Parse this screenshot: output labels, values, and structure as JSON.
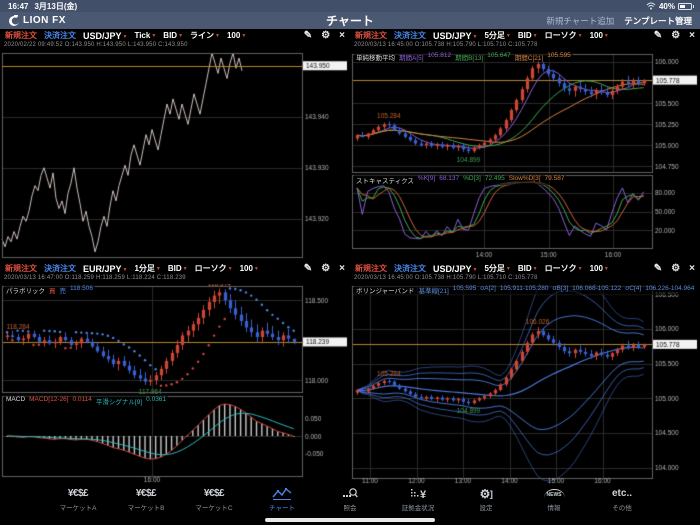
{
  "status_bar": {
    "time": "16:47",
    "date": "3月13日(金)",
    "battery_percent": "40%"
  },
  "title_bar": {
    "logo": "LION FX",
    "title": "チャート",
    "add_chart": "新規チャート追加",
    "template_manage": "テンプレート管理"
  },
  "toolbar": {
    "currencies_glyph": "¥€$£",
    "etc_glyph": "etc..",
    "news_glyph": "NEWS",
    "items": [
      {
        "label": "マーケットA",
        "icon": "currencies",
        "active": false
      },
      {
        "label": "マーケットB",
        "icon": "currencies",
        "active": false
      },
      {
        "label": "マーケットC",
        "icon": "currencies",
        "active": false
      },
      {
        "label": "チャート",
        "icon": "chart",
        "active": true
      },
      {
        "label": "照会",
        "icon": "search",
        "active": false
      },
      {
        "label": "証拠金状況",
        "icon": "margin",
        "active": false
      },
      {
        "label": "設定",
        "icon": "settings",
        "active": false
      },
      {
        "label": "情報",
        "icon": "news",
        "active": false
      },
      {
        "label": "その他",
        "icon": "etc",
        "active": false
      }
    ]
  },
  "colors": {
    "up": "#cc4636",
    "down": "#3a5fd0",
    "grid": "#2a2a2a",
    "frame": "#616161",
    "axis_text": "#b0b0b0",
    "cur_line": "#b5862b",
    "tick_line": "#cfc0bd",
    "sma_a": "#8a5fd8",
    "sma_b": "#3faa4f",
    "sma_c": "#d8833c",
    "stoch_k": "#8a5fd8",
    "stoch_d": "#3faa4f",
    "stoch_sd": "#c8643c",
    "macd": "#c8443c",
    "signal": "#2fb8b8",
    "hist": "#c8c8c8",
    "bb": "#4a78d8",
    "sar_up": "#cf4a3c",
    "sar_dn": "#4a86e8",
    "ann_hi": "#c2622f",
    "ann_lo": "#3da050"
  },
  "panels": [
    {
      "kind": "tick",
      "header": {
        "new_order": "新規注文",
        "close_order": "決済注文",
        "pair": "USD/JPY",
        "timeframe": "Tick",
        "price_side": "BID",
        "chart_type": "ライン",
        "bar_count": "100"
      },
      "info": "2020/02/22 09:49:52   O:143.950   H:143.950   L:143.950   C:143.950",
      "current": {
        "p": 143.95,
        "t": "143.950"
      },
      "y_ticks": [
        {
          "p": 143.95,
          "t": "143.950"
        },
        {
          "p": 143.94,
          "t": "143.940"
        },
        {
          "p": 143.93,
          "t": "143.930"
        },
        {
          "p": 143.92,
          "t": "143.920"
        }
      ],
      "x_labels": [],
      "ticks": [
        143.916,
        143.9145,
        143.9165,
        143.9155,
        143.9175,
        143.916,
        143.9185,
        143.9205,
        143.9195,
        143.9215,
        143.9245,
        143.9265,
        143.9255,
        143.9285,
        143.93,
        143.928,
        143.926,
        143.929,
        143.924,
        143.922,
        143.9235,
        143.921,
        143.925,
        143.927,
        143.93,
        143.926,
        143.923,
        143.9195,
        143.9215,
        143.9185,
        143.9165,
        143.9135,
        143.9155,
        143.9185,
        143.9205,
        143.9185,
        143.9225,
        143.9255,
        143.9235,
        143.9265,
        143.9285,
        143.9305,
        143.9285,
        143.9325,
        143.9345,
        143.9325,
        143.9305,
        143.9335,
        143.9365,
        143.9345,
        143.9375,
        143.9355,
        143.9335,
        143.9365,
        143.9395,
        143.9425,
        143.9405,
        143.9435,
        143.9415,
        143.9395,
        143.9425,
        143.9405,
        143.9385,
        143.9415,
        143.9445,
        143.9425,
        143.9405,
        143.9435,
        143.9465,
        143.9495,
        143.9525,
        143.9505,
        143.9485,
        143.9515,
        143.9495,
        143.9475,
        143.9505,
        143.9525,
        143.9495,
        143.9515,
        143.949
      ]
    },
    {
      "kind": "sma_stoch",
      "header": {
        "new_order": "新規注文",
        "close_order": "決済注文",
        "pair": "USD/JPY",
        "timeframe": "5分足",
        "price_side": "BID",
        "chart_type": "ローソク",
        "bar_count": "100"
      },
      "info": "2020/03/13 16:45:00   O:105.738   H:105.790   L:105.710   C:105.778",
      "ind_sma": {
        "name": "単純移動平均",
        "a_label": "期間A[5]",
        "a_value": "105.812",
        "b_label": "期間B[13]",
        "b_value": "105.647",
        "c_label": "期間C[21]",
        "c_value": "105.595"
      },
      "ind_stoch": {
        "name": "ストキャスティクス",
        "k_label": "%K[9]",
        "k_value": "68.137",
        "d_label": "%D[3]",
        "d_value": "72.495",
        "sd_label": "Slow%D[3]",
        "sd_value": "79.587"
      },
      "current": {
        "p": 105.778,
        "t": "105.778"
      },
      "y_ticks": [
        {
          "p": 106.0,
          "t": "106.000"
        },
        {
          "p": 105.5,
          "t": "105.500"
        },
        {
          "p": 105.25,
          "t": "105.250"
        },
        {
          "p": 105.0,
          "t": "105.000"
        },
        {
          "p": 104.75,
          "t": "104.750"
        }
      ],
      "sub_ticks": [
        {
          "v": 80,
          "t": "80.000"
        },
        {
          "v": 50,
          "t": "50.000"
        },
        {
          "v": 20,
          "t": "20.000"
        }
      ],
      "x_labels": [
        {
          "f": 0.44,
          "t": "14:00"
        },
        {
          "f": 0.655,
          "t": "15:00"
        },
        {
          "f": 0.87,
          "t": "16:00"
        }
      ],
      "annotations": [
        {
          "t": "105.284",
          "i": 6,
          "above": true,
          "hi": true
        },
        {
          "t": "104.899",
          "i": 21,
          "above": false,
          "hi": false
        }
      ],
      "candles": [
        [
          105.08,
          105.13,
          105.05,
          105.12
        ],
        [
          105.12,
          105.16,
          105.09,
          105.1
        ],
        [
          105.1,
          105.15,
          105.07,
          105.14
        ],
        [
          105.14,
          105.2,
          105.12,
          105.18
        ],
        [
          105.18,
          105.24,
          105.15,
          105.22
        ],
        [
          105.22,
          105.27,
          105.19,
          105.25
        ],
        [
          105.25,
          105.284,
          105.21,
          105.24
        ],
        [
          105.24,
          105.26,
          105.17,
          105.18
        ],
        [
          105.18,
          105.21,
          105.12,
          105.14
        ],
        [
          105.14,
          105.17,
          105.08,
          105.1
        ],
        [
          105.1,
          105.13,
          105.04,
          105.06
        ],
        [
          105.06,
          105.09,
          105.0,
          105.02
        ],
        [
          105.02,
          105.06,
          104.98,
          105.0
        ],
        [
          105.0,
          105.04,
          104.96,
          105.02
        ],
        [
          105.02,
          105.05,
          104.97,
          104.99
        ],
        [
          104.99,
          105.03,
          104.95,
          105.01
        ],
        [
          105.01,
          105.04,
          104.96,
          104.98
        ],
        [
          104.98,
          105.02,
          104.94,
          105.0
        ],
        [
          105.0,
          105.03,
          104.95,
          104.97
        ],
        [
          104.97,
          105.01,
          104.93,
          104.99
        ],
        [
          104.99,
          105.02,
          104.92,
          104.95
        ],
        [
          104.95,
          104.99,
          104.899,
          104.93
        ],
        [
          104.93,
          104.99,
          104.91,
          104.97
        ],
        [
          104.97,
          105.02,
          104.95,
          105.0
        ],
        [
          105.0,
          105.05,
          104.97,
          105.03
        ],
        [
          105.03,
          105.09,
          105.0,
          105.07
        ],
        [
          105.07,
          105.14,
          105.04,
          105.12
        ],
        [
          105.12,
          105.22,
          105.1,
          105.2
        ],
        [
          105.2,
          105.32,
          105.17,
          105.3
        ],
        [
          105.3,
          105.44,
          105.27,
          105.42
        ],
        [
          105.42,
          105.56,
          105.39,
          105.54
        ],
        [
          105.54,
          105.7,
          105.51,
          105.67
        ],
        [
          105.67,
          105.83,
          105.63,
          105.8
        ],
        [
          105.8,
          105.95,
          105.76,
          105.92
        ],
        [
          105.92,
          106.026,
          105.86,
          105.97
        ],
        [
          105.97,
          106.0,
          105.88,
          105.91
        ],
        [
          105.91,
          105.95,
          105.82,
          105.85
        ],
        [
          105.85,
          105.9,
          105.76,
          105.8
        ],
        [
          105.8,
          105.84,
          105.7,
          105.74
        ],
        [
          105.74,
          105.79,
          105.64,
          105.68
        ],
        [
          105.68,
          105.74,
          105.6,
          105.65
        ],
        [
          105.65,
          105.72,
          105.58,
          105.7
        ],
        [
          105.7,
          105.76,
          105.63,
          105.67
        ],
        [
          105.67,
          105.73,
          105.6,
          105.64
        ],
        [
          105.64,
          105.7,
          105.57,
          105.61
        ],
        [
          105.61,
          105.68,
          105.55,
          105.66
        ],
        [
          105.66,
          105.72,
          105.6,
          105.63
        ],
        [
          105.63,
          105.69,
          105.57,
          105.6
        ],
        [
          105.6,
          105.67,
          105.55,
          105.65
        ],
        [
          105.65,
          105.73,
          105.61,
          105.7
        ],
        [
          105.7,
          105.79,
          105.66,
          105.76
        ],
        [
          105.76,
          105.83,
          105.7,
          105.73
        ],
        [
          105.73,
          105.8,
          105.68,
          105.77
        ],
        [
          105.77,
          105.82,
          105.71,
          105.74
        ],
        [
          105.738,
          105.79,
          105.71,
          105.778
        ]
      ]
    },
    {
      "kind": "sar_macd",
      "header": {
        "new_order": "新規注文",
        "close_order": "決済注文",
        "pair": "EUR/JPY",
        "timeframe": "1分足",
        "price_side": "BID",
        "chart_type": "ローソク",
        "bar_count": "100"
      },
      "info": "2020/03/13 16:47:00   O:118.259   H:118.259   L:118.224   C:118.239",
      "ind_sar": {
        "name": "パラボリック",
        "buy": "買",
        "sell": "売",
        "value": "118.506"
      },
      "ind_macd": {
        "name": "MACD",
        "macd_label": "MACD[12-26]",
        "macd_value": "0.0114",
        "sig_label": "平滑シグナル[9]",
        "sig_value": "0.0361"
      },
      "current": {
        "p": 118.239,
        "t": "118.239"
      },
      "y_ticks": [
        {
          "p": 118.5,
          "t": "118.500"
        },
        {
          "p": 118.0,
          "t": "118.000"
        }
      ],
      "sub_ticks": [
        {
          "v": 0.05,
          "t": "0.050"
        },
        {
          "v": 0,
          "t": "0.000"
        },
        {
          "v": -0.05,
          "t": "-0.050"
        }
      ],
      "x_labels": [
        {
          "f": 0.5,
          "t": "16:00"
        }
      ],
      "annotations": [
        {
          "t": "118.284",
          "i": 0,
          "above": true,
          "hi": true
        },
        {
          "t": "117.964",
          "i": 27,
          "above": false,
          "hi": false
        },
        {
          "t": "118.574",
          "i": 40,
          "above": true,
          "hi": true
        }
      ],
      "candles": [
        [
          118.27,
          118.3,
          118.25,
          118.28
        ],
        [
          118.28,
          118.31,
          118.26,
          118.27
        ],
        [
          118.27,
          118.29,
          118.24,
          118.25
        ],
        [
          118.25,
          118.28,
          118.22,
          118.26
        ],
        [
          118.26,
          118.3,
          118.24,
          118.29
        ],
        [
          118.29,
          118.31,
          118.26,
          118.27
        ],
        [
          118.27,
          118.29,
          118.23,
          118.24
        ],
        [
          118.24,
          118.27,
          118.21,
          118.25
        ],
        [
          118.25,
          118.28,
          118.22,
          118.23
        ],
        [
          118.23,
          118.26,
          118.2,
          118.24
        ],
        [
          118.24,
          118.28,
          118.22,
          118.27
        ],
        [
          118.27,
          118.3,
          118.24,
          118.25
        ],
        [
          118.25,
          118.27,
          118.21,
          118.22
        ],
        [
          118.22,
          118.25,
          118.19,
          118.23
        ],
        [
          118.23,
          118.27,
          118.2,
          118.26
        ],
        [
          118.26,
          118.29,
          118.23,
          118.24
        ],
        [
          118.24,
          118.26,
          118.2,
          118.21
        ],
        [
          118.21,
          118.24,
          118.17,
          118.18
        ],
        [
          118.18,
          118.21,
          118.14,
          118.15
        ],
        [
          118.15,
          118.19,
          118.11,
          118.13
        ],
        [
          118.13,
          118.16,
          118.08,
          118.1
        ],
        [
          118.1,
          118.14,
          118.06,
          118.12
        ],
        [
          118.12,
          118.15,
          118.08,
          118.09
        ],
        [
          118.09,
          118.12,
          118.04,
          118.06
        ],
        [
          118.06,
          118.09,
          118.01,
          118.03
        ],
        [
          118.03,
          118.07,
          117.99,
          118.01
        ],
        [
          118.01,
          118.05,
          117.97,
          117.99
        ],
        [
          117.99,
          118.03,
          117.964,
          118.0
        ],
        [
          118.0,
          118.05,
          117.97,
          118.03
        ],
        [
          118.03,
          118.09,
          118.0,
          118.07
        ],
        [
          118.07,
          118.14,
          118.04,
          118.12
        ],
        [
          118.12,
          118.19,
          118.09,
          118.17
        ],
        [
          118.17,
          118.25,
          118.14,
          118.22
        ],
        [
          118.22,
          118.3,
          118.19,
          118.28
        ],
        [
          118.28,
          118.34,
          118.24,
          118.31
        ],
        [
          118.31,
          118.37,
          118.27,
          118.35
        ],
        [
          118.35,
          118.42,
          118.31,
          118.39
        ],
        [
          118.39,
          118.47,
          118.35,
          118.44
        ],
        [
          118.44,
          118.52,
          118.4,
          118.49
        ],
        [
          118.49,
          118.56,
          118.45,
          118.53
        ],
        [
          118.53,
          118.574,
          118.48,
          118.55
        ],
        [
          118.55,
          118.57,
          118.47,
          118.5
        ],
        [
          118.5,
          118.54,
          118.42,
          118.45
        ],
        [
          118.45,
          118.5,
          118.38,
          118.41
        ],
        [
          118.41,
          118.46,
          118.34,
          118.37
        ],
        [
          118.37,
          118.42,
          118.3,
          118.33
        ],
        [
          118.33,
          118.38,
          118.27,
          118.3
        ],
        [
          118.3,
          118.35,
          118.24,
          118.27
        ],
        [
          118.27,
          118.33,
          118.23,
          118.31
        ],
        [
          118.31,
          118.36,
          118.27,
          118.29
        ],
        [
          118.29,
          118.34,
          118.25,
          118.27
        ],
        [
          118.27,
          118.31,
          118.22,
          118.25
        ],
        [
          118.25,
          118.3,
          118.21,
          118.28
        ],
        [
          118.28,
          118.32,
          118.23,
          118.26
        ],
        [
          118.259,
          118.259,
          118.224,
          118.239
        ]
      ]
    },
    {
      "kind": "bb",
      "header": {
        "new_order": "新規注文",
        "close_order": "決済注文",
        "pair": "USD/JPY",
        "timeframe": "5分足",
        "price_side": "BID",
        "chart_type": "ローソク",
        "bar_count": "100"
      },
      "info": "2020/03/13 16:45:00   O:105.738   H:105.790   L:105.710   C:105.778",
      "ind_bb": {
        "name": "ボリンジャーバンド",
        "center_label": "基準線[21]",
        "center_value": "105.595",
        "a_label": "σA[2]",
        "a_value": "105.911-105.280",
        "b_label": "σB[3]",
        "b_value": "106.068-105.122",
        "c_label": "σC[4]",
        "c_value": "106.226-104.964"
      },
      "current": {
        "p": 105.778,
        "t": "105.778"
      },
      "y_ticks": [
        {
          "p": 106.5,
          "t": "106.500"
        },
        {
          "p": 106.0,
          "t": "106.000"
        },
        {
          "p": 105.5,
          "t": "105.500"
        },
        {
          "p": 105.0,
          "t": "105.000"
        },
        {
          "p": 104.5,
          "t": "104.500"
        },
        {
          "p": 104.0,
          "t": "104.000"
        }
      ],
      "x_labels": [
        {
          "f": 0.06,
          "t": "11:00"
        },
        {
          "f": 0.215,
          "t": "12:00"
        },
        {
          "f": 0.37,
          "t": "13:00"
        },
        {
          "f": 0.525,
          "t": "14:00"
        },
        {
          "f": 0.68,
          "t": "15:00"
        },
        {
          "f": 0.835,
          "t": "16:00"
        }
      ],
      "annotations": [
        {
          "t": "105.284",
          "i": 6,
          "above": true,
          "hi": true
        },
        {
          "t": "104.899",
          "i": 21,
          "above": false,
          "hi": false
        },
        {
          "t": "106.026",
          "i": 34,
          "above": true,
          "hi": true
        }
      ],
      "use_candles_of": 1
    }
  ]
}
